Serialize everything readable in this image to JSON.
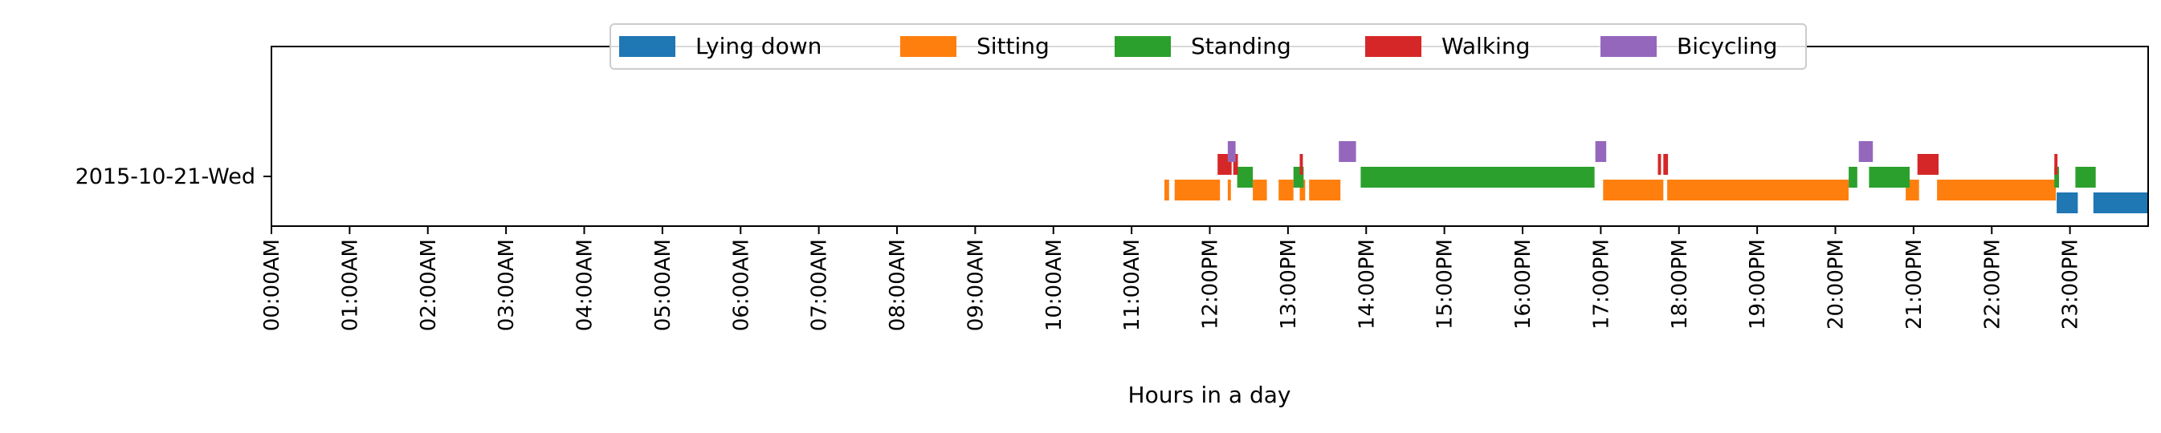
{
  "chart_data": {
    "type": "timeline",
    "xlabel": "Hours in a day",
    "ylabel": "",
    "xlim": [
      0,
      24
    ],
    "grid": false,
    "legend_position": "top-center",
    "rows": [
      "2015-10-21-Wed"
    ],
    "x_ticks": [
      "00:00AM",
      "01:00AM",
      "02:00AM",
      "03:00AM",
      "04:00AM",
      "05:00AM",
      "06:00AM",
      "07:00AM",
      "08:00AM",
      "09:00AM",
      "10:00AM",
      "11:00AM",
      "12:00PM",
      "13:00PM",
      "14:00PM",
      "15:00PM",
      "16:00PM",
      "17:00PM",
      "18:00PM",
      "19:00PM",
      "20:00PM",
      "21:00PM",
      "22:00PM",
      "23:00PM"
    ],
    "series": [
      {
        "name": "Lying down",
        "color": "#1f77b4",
        "intervals": [
          [
            22.83,
            23.1
          ],
          [
            23.3,
            24.0
          ]
        ]
      },
      {
        "name": "Sitting",
        "color": "#ff7f0e",
        "intervals": [
          [
            11.42,
            11.48
          ],
          [
            11.55,
            12.13
          ],
          [
            12.23,
            12.27
          ],
          [
            12.55,
            12.73
          ],
          [
            12.88,
            13.07
          ],
          [
            13.15,
            13.22
          ],
          [
            13.27,
            13.67
          ],
          [
            17.03,
            17.8
          ],
          [
            17.85,
            20.17
          ],
          [
            20.9,
            21.07
          ],
          [
            21.3,
            22.82
          ]
        ]
      },
      {
        "name": "Standing",
        "color": "#2ca02c",
        "intervals": [
          [
            12.35,
            12.55
          ],
          [
            13.07,
            13.2
          ],
          [
            13.93,
            16.92
          ],
          [
            20.17,
            20.28
          ],
          [
            20.43,
            20.95
          ],
          [
            22.8,
            22.86
          ],
          [
            23.07,
            23.33
          ]
        ]
      },
      {
        "name": "Walking",
        "color": "#d62728",
        "intervals": [
          [
            12.1,
            12.28
          ],
          [
            12.3,
            12.36
          ],
          [
            13.15,
            13.19
          ],
          [
            17.73,
            17.77
          ],
          [
            17.8,
            17.86
          ],
          [
            21.05,
            21.32
          ],
          [
            22.8,
            22.84
          ]
        ]
      },
      {
        "name": "Bicycling",
        "color": "#9467bd",
        "intervals": [
          [
            12.23,
            12.33
          ],
          [
            13.65,
            13.87
          ],
          [
            16.93,
            17.07
          ],
          [
            20.3,
            20.48
          ]
        ]
      }
    ]
  }
}
